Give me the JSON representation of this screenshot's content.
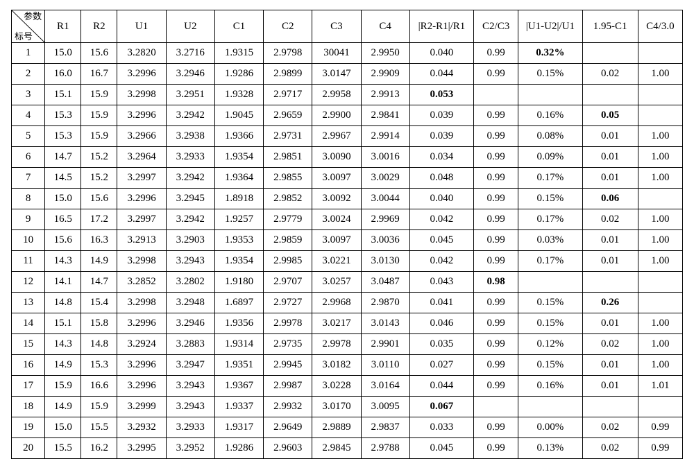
{
  "table": {
    "diag_top": "参数",
    "diag_bottom": "标号",
    "headers": [
      "R1",
      "R2",
      "U1",
      "U2",
      "C1",
      "C2",
      "C3",
      "C4",
      "|R2-R1|/R1",
      "C2/C3",
      "|U1-U2|/U1",
      "1.95-C1",
      "C4/3.0"
    ],
    "rows": [
      {
        "idx": "1",
        "cells": [
          {
            "v": "15.0"
          },
          {
            "v": "15.6"
          },
          {
            "v": "3.2820"
          },
          {
            "v": "3.2716"
          },
          {
            "v": "1.9315"
          },
          {
            "v": "2.9798"
          },
          {
            "v": "30041"
          },
          {
            "v": "2.9950"
          },
          {
            "v": "0.040"
          },
          {
            "v": "0.99"
          },
          {
            "v": "0.32%",
            "b": true
          },
          {
            "v": ""
          },
          {
            "v": ""
          }
        ]
      },
      {
        "idx": "2",
        "cells": [
          {
            "v": "16.0"
          },
          {
            "v": "16.7"
          },
          {
            "v": "3.2996"
          },
          {
            "v": "3.2946"
          },
          {
            "v": "1.9286"
          },
          {
            "v": "2.9899"
          },
          {
            "v": "3.0147"
          },
          {
            "v": "2.9909"
          },
          {
            "v": "0.044"
          },
          {
            "v": "0.99"
          },
          {
            "v": "0.15%"
          },
          {
            "v": "0.02"
          },
          {
            "v": "1.00"
          }
        ]
      },
      {
        "idx": "3",
        "cells": [
          {
            "v": "15.1"
          },
          {
            "v": "15.9"
          },
          {
            "v": "3.2998"
          },
          {
            "v": "3.2951"
          },
          {
            "v": "1.9328"
          },
          {
            "v": "2.9717"
          },
          {
            "v": "2.9958"
          },
          {
            "v": "2.9913"
          },
          {
            "v": "0.053",
            "b": true
          },
          {
            "v": ""
          },
          {
            "v": ""
          },
          {
            "v": ""
          },
          {
            "v": ""
          }
        ]
      },
      {
        "idx": "4",
        "cells": [
          {
            "v": "15.3"
          },
          {
            "v": "15.9"
          },
          {
            "v": "3.2996"
          },
          {
            "v": "3.2942"
          },
          {
            "v": "1.9045"
          },
          {
            "v": "2.9659"
          },
          {
            "v": "2.9900"
          },
          {
            "v": "2.9841"
          },
          {
            "v": "0.039"
          },
          {
            "v": "0.99"
          },
          {
            "v": "0.16%"
          },
          {
            "v": "0.05",
            "b": true
          },
          {
            "v": ""
          }
        ]
      },
      {
        "idx": "5",
        "cells": [
          {
            "v": "15.3"
          },
          {
            "v": "15.9"
          },
          {
            "v": "3.2966"
          },
          {
            "v": "3.2938"
          },
          {
            "v": "1.9366"
          },
          {
            "v": "2.9731"
          },
          {
            "v": "2.9967"
          },
          {
            "v": "2.9914"
          },
          {
            "v": "0.039"
          },
          {
            "v": "0.99"
          },
          {
            "v": "0.08%"
          },
          {
            "v": "0.01"
          },
          {
            "v": "1.00"
          }
        ]
      },
      {
        "idx": "6",
        "cells": [
          {
            "v": "14.7"
          },
          {
            "v": "15.2"
          },
          {
            "v": "3.2964"
          },
          {
            "v": "3.2933"
          },
          {
            "v": "1.9354"
          },
          {
            "v": "2.9851"
          },
          {
            "v": "3.0090"
          },
          {
            "v": "3.0016"
          },
          {
            "v": "0.034"
          },
          {
            "v": "0.99"
          },
          {
            "v": "0.09%"
          },
          {
            "v": "0.01"
          },
          {
            "v": "1.00"
          }
        ]
      },
      {
        "idx": "7",
        "cells": [
          {
            "v": "14.5"
          },
          {
            "v": "15.2"
          },
          {
            "v": "3.2997"
          },
          {
            "v": "3.2942"
          },
          {
            "v": "1.9364"
          },
          {
            "v": "2.9855"
          },
          {
            "v": "3.0097"
          },
          {
            "v": "3.0029"
          },
          {
            "v": "0.048"
          },
          {
            "v": "0.99"
          },
          {
            "v": "0.17%"
          },
          {
            "v": "0.01"
          },
          {
            "v": "1.00"
          }
        ]
      },
      {
        "idx": "8",
        "cells": [
          {
            "v": "15.0"
          },
          {
            "v": "15.6"
          },
          {
            "v": "3.2996"
          },
          {
            "v": "3.2945"
          },
          {
            "v": "1.8918"
          },
          {
            "v": "2.9852"
          },
          {
            "v": "3.0092"
          },
          {
            "v": "3.0044"
          },
          {
            "v": "0.040"
          },
          {
            "v": "0.99"
          },
          {
            "v": "0.15%"
          },
          {
            "v": "0.06",
            "b": true
          },
          {
            "v": ""
          }
        ]
      },
      {
        "idx": "9",
        "cells": [
          {
            "v": "16.5"
          },
          {
            "v": "17.2"
          },
          {
            "v": "3.2997"
          },
          {
            "v": "3.2942"
          },
          {
            "v": "1.9257"
          },
          {
            "v": "2.9779"
          },
          {
            "v": "3.0024"
          },
          {
            "v": "2.9969"
          },
          {
            "v": "0.042"
          },
          {
            "v": "0.99"
          },
          {
            "v": "0.17%"
          },
          {
            "v": "0.02"
          },
          {
            "v": "1.00"
          }
        ]
      },
      {
        "idx": "10",
        "cells": [
          {
            "v": "15.6"
          },
          {
            "v": "16.3"
          },
          {
            "v": "3.2913"
          },
          {
            "v": "3.2903"
          },
          {
            "v": "1.9353"
          },
          {
            "v": "2.9859"
          },
          {
            "v": "3.0097"
          },
          {
            "v": "3.0036"
          },
          {
            "v": "0.045"
          },
          {
            "v": "0.99"
          },
          {
            "v": "0.03%"
          },
          {
            "v": "0.01"
          },
          {
            "v": "1.00"
          }
        ]
      },
      {
        "idx": "11",
        "cells": [
          {
            "v": "14.3"
          },
          {
            "v": "14.9"
          },
          {
            "v": "3.2998"
          },
          {
            "v": "3.2943"
          },
          {
            "v": "1.9354"
          },
          {
            "v": "2.9985"
          },
          {
            "v": "3.0221"
          },
          {
            "v": "3.0130"
          },
          {
            "v": "0.042"
          },
          {
            "v": "0.99"
          },
          {
            "v": "0.17%"
          },
          {
            "v": "0.01"
          },
          {
            "v": "1.00"
          }
        ]
      },
      {
        "idx": "12",
        "cells": [
          {
            "v": "14.1"
          },
          {
            "v": "14.7"
          },
          {
            "v": "3.2852"
          },
          {
            "v": "3.2802"
          },
          {
            "v": "1.9180"
          },
          {
            "v": "2.9707"
          },
          {
            "v": "3.0257"
          },
          {
            "v": "3.0487"
          },
          {
            "v": "0.043"
          },
          {
            "v": "0.98",
            "b": true
          },
          {
            "v": ""
          },
          {
            "v": ""
          },
          {
            "v": ""
          }
        ]
      },
      {
        "idx": "13",
        "cells": [
          {
            "v": "14.8"
          },
          {
            "v": "15.4"
          },
          {
            "v": "3.2998"
          },
          {
            "v": "3.2948"
          },
          {
            "v": "1.6897"
          },
          {
            "v": "2.9727"
          },
          {
            "v": "2.9968"
          },
          {
            "v": "2.9870"
          },
          {
            "v": "0.041"
          },
          {
            "v": "0.99"
          },
          {
            "v": "0.15%"
          },
          {
            "v": "0.26",
            "b": true
          },
          {
            "v": ""
          }
        ]
      },
      {
        "idx": "14",
        "cells": [
          {
            "v": "15.1"
          },
          {
            "v": "15.8"
          },
          {
            "v": "3.2996"
          },
          {
            "v": "3.2946"
          },
          {
            "v": "1.9356"
          },
          {
            "v": "2.9978"
          },
          {
            "v": "3.0217"
          },
          {
            "v": "3.0143"
          },
          {
            "v": "0.046"
          },
          {
            "v": "0.99"
          },
          {
            "v": "0.15%"
          },
          {
            "v": "0.01"
          },
          {
            "v": "1.00"
          }
        ]
      },
      {
        "idx": "15",
        "cells": [
          {
            "v": "14.3"
          },
          {
            "v": "14.8"
          },
          {
            "v": "3.2924"
          },
          {
            "v": "3.2883"
          },
          {
            "v": "1.9314"
          },
          {
            "v": "2.9735"
          },
          {
            "v": "2.9978"
          },
          {
            "v": "2.9901"
          },
          {
            "v": "0.035"
          },
          {
            "v": "0.99"
          },
          {
            "v": "0.12%"
          },
          {
            "v": "0.02"
          },
          {
            "v": "1.00"
          }
        ]
      },
      {
        "idx": "16",
        "cells": [
          {
            "v": "14.9"
          },
          {
            "v": "15.3"
          },
          {
            "v": "3.2996"
          },
          {
            "v": "3.2947"
          },
          {
            "v": "1.9351"
          },
          {
            "v": "2.9945"
          },
          {
            "v": "3.0182"
          },
          {
            "v": "3.0110"
          },
          {
            "v": "0.027"
          },
          {
            "v": "0.99"
          },
          {
            "v": "0.15%"
          },
          {
            "v": "0.01"
          },
          {
            "v": "1.00"
          }
        ]
      },
      {
        "idx": "17",
        "cells": [
          {
            "v": "15.9"
          },
          {
            "v": "16.6"
          },
          {
            "v": "3.2996"
          },
          {
            "v": "3.2943"
          },
          {
            "v": "1.9367"
          },
          {
            "v": "2.9987"
          },
          {
            "v": "3.0228"
          },
          {
            "v": "3.0164"
          },
          {
            "v": "0.044"
          },
          {
            "v": "0.99"
          },
          {
            "v": "0.16%"
          },
          {
            "v": "0.01"
          },
          {
            "v": "1.01"
          }
        ]
      },
      {
        "idx": "18",
        "cells": [
          {
            "v": "14.9"
          },
          {
            "v": "15.9"
          },
          {
            "v": "3.2999"
          },
          {
            "v": "3.2943"
          },
          {
            "v": "1.9337"
          },
          {
            "v": "2.9932"
          },
          {
            "v": "3.0170"
          },
          {
            "v": "3.0095"
          },
          {
            "v": "0.067",
            "b": true
          },
          {
            "v": ""
          },
          {
            "v": ""
          },
          {
            "v": ""
          },
          {
            "v": ""
          }
        ]
      },
      {
        "idx": "19",
        "cells": [
          {
            "v": "15.0"
          },
          {
            "v": "15.5"
          },
          {
            "v": "3.2932"
          },
          {
            "v": "3.2933"
          },
          {
            "v": "1.9317"
          },
          {
            "v": "2.9649"
          },
          {
            "v": "2.9889"
          },
          {
            "v": "2.9837"
          },
          {
            "v": "0.033"
          },
          {
            "v": "0.99"
          },
          {
            "v": "0.00%"
          },
          {
            "v": "0.02"
          },
          {
            "v": "0.99"
          }
        ]
      },
      {
        "idx": "20",
        "cells": [
          {
            "v": "15.5"
          },
          {
            "v": "16.2"
          },
          {
            "v": "3.2995"
          },
          {
            "v": "3.2952"
          },
          {
            "v": "1.9286"
          },
          {
            "v": "2.9603"
          },
          {
            "v": "2.9845"
          },
          {
            "v": "2.9788"
          },
          {
            "v": "0.045"
          },
          {
            "v": "0.99"
          },
          {
            "v": "0.13%"
          },
          {
            "v": "0.02"
          },
          {
            "v": "0.99"
          }
        ]
      }
    ]
  }
}
